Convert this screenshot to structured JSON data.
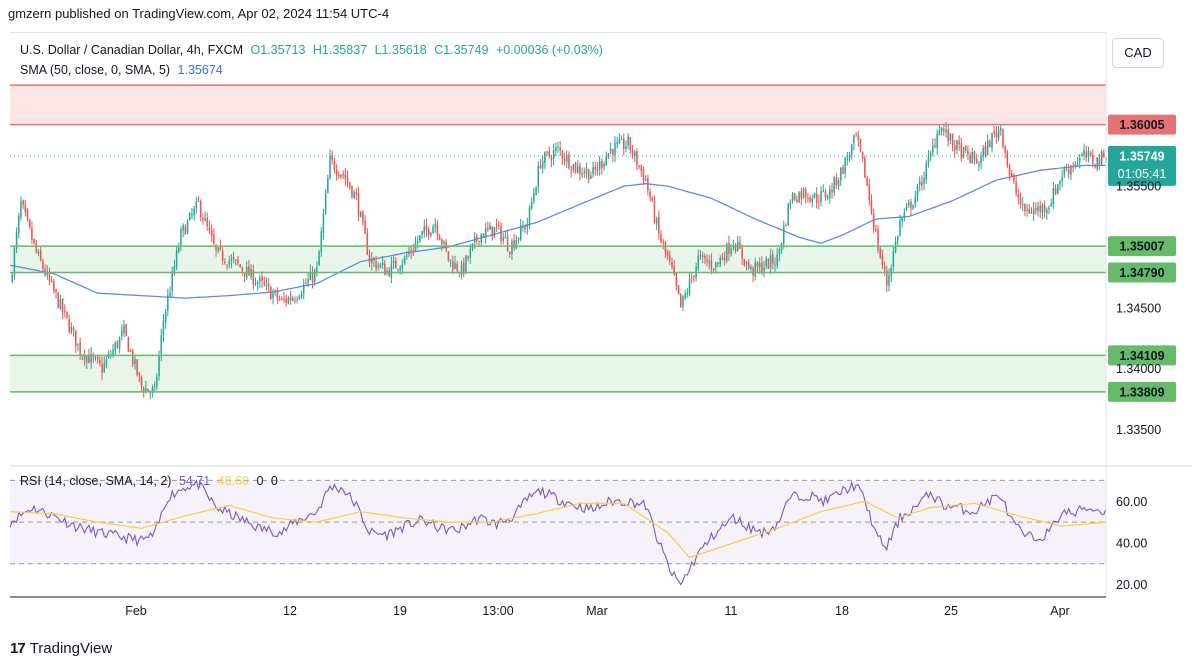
{
  "header": {
    "publisher_line": "gmzern published on TradingView.com, Apr 02, 2024 11:54 UTC-4"
  },
  "legend": {
    "symbol": "U.S. Dollar / Canadian Dollar, 4h, FXCM",
    "open": "O1.35713",
    "high": "H1.35837",
    "low": "L1.35618",
    "close": "C1.35749",
    "change": "+0.00036 (+0.03%)",
    "sma_label": "SMA (50, close, 0, SMA, 5)",
    "sma_value": "1.35674"
  },
  "rsi_legend": {
    "label": "RSI (14, close, SMA, 14, 2)",
    "rsi_value": "54.71",
    "ma_value": "48.60",
    "v3": "0",
    "v4": "0"
  },
  "currency_button": "CAD",
  "footer": {
    "brand": "TradingView"
  },
  "colors": {
    "up": "#26a69a",
    "down": "#ef5350",
    "sma": "#5b8def",
    "rsi": "#7e57c2",
    "rsi_ma": "#f5d142",
    "resistance": "#e57373",
    "support": "#66bb6a"
  },
  "chart_data": [
    {
      "type": "candlestick",
      "title": "U.S. Dollar / Canadian Dollar, 4h, FXCM",
      "ylim": [
        1.332,
        1.3652
      ],
      "y_ticks": [
        "1.35500",
        "1.34500",
        "1.34000",
        "1.33500"
      ],
      "x_ticks": [
        "Feb",
        "12",
        "19",
        "13:00",
        "Mar",
        "11",
        "18",
        "25",
        "Apr"
      ],
      "last_price": "1.35749",
      "countdown": "01:05:41",
      "price_anchors": [
        [
          0,
          1.347
        ],
        [
          5,
          1.3535
        ],
        [
          12,
          1.3495
        ],
        [
          22,
          1.3455
        ],
        [
          32,
          1.3415
        ],
        [
          42,
          1.34
        ],
        [
          52,
          1.343
        ],
        [
          60,
          1.3385
        ],
        [
          66,
          1.338
        ],
        [
          70,
          1.344
        ],
        [
          78,
          1.351
        ],
        [
          86,
          1.3535
        ],
        [
          94,
          1.3495
        ],
        [
          104,
          1.3485
        ],
        [
          114,
          1.347
        ],
        [
          124,
          1.3455
        ],
        [
          130,
          1.346
        ],
        [
          140,
          1.348
        ],
        [
          146,
          1.357
        ],
        [
          152,
          1.356
        ],
        [
          158,
          1.354
        ],
        [
          164,
          1.349
        ],
        [
          172,
          1.348
        ],
        [
          180,
          1.349
        ],
        [
          188,
          1.351
        ],
        [
          194,
          1.352
        ],
        [
          200,
          1.349
        ],
        [
          206,
          1.348
        ],
        [
          214,
          1.351
        ],
        [
          222,
          1.3515
        ],
        [
          228,
          1.35
        ],
        [
          236,
          1.352
        ],
        [
          242,
          1.357
        ],
        [
          250,
          1.358
        ],
        [
          258,
          1.3565
        ],
        [
          266,
          1.356
        ],
        [
          274,
          1.358
        ],
        [
          282,
          1.3585
        ],
        [
          290,
          1.3555
        ],
        [
          296,
          1.351
        ],
        [
          302,
          1.348
        ],
        [
          306,
          1.345
        ],
        [
          314,
          1.349
        ],
        [
          322,
          1.3485
        ],
        [
          330,
          1.3505
        ],
        [
          338,
          1.348
        ],
        [
          344,
          1.3485
        ],
        [
          350,
          1.349
        ],
        [
          356,
          1.354
        ],
        [
          362,
          1.3545
        ],
        [
          368,
          1.354
        ],
        [
          374,
          1.3545
        ],
        [
          380,
          1.3565
        ],
        [
          386,
          1.359
        ],
        [
          390,
          1.356
        ],
        [
          396,
          1.35
        ],
        [
          400,
          1.347
        ],
        [
          406,
          1.352
        ],
        [
          414,
          1.3545
        ],
        [
          420,
          1.3575
        ],
        [
          424,
          1.36
        ],
        [
          430,
          1.3585
        ],
        [
          436,
          1.3575
        ],
        [
          442,
          1.357
        ],
        [
          448,
          1.359
        ],
        [
          452,
          1.3598
        ],
        [
          456,
          1.356
        ],
        [
          462,
          1.353
        ],
        [
          468,
          1.353
        ],
        [
          474,
          1.3535
        ],
        [
          480,
          1.356
        ],
        [
          486,
          1.357
        ],
        [
          490,
          1.3575
        ],
        [
          495,
          1.357
        ],
        [
          500,
          1.3575
        ]
      ],
      "sma_anchors": [
        [
          0,
          1.3485
        ],
        [
          20,
          1.3478
        ],
        [
          40,
          1.3462
        ],
        [
          60,
          1.346
        ],
        [
          80,
          1.3458
        ],
        [
          100,
          1.346
        ],
        [
          120,
          1.3463
        ],
        [
          140,
          1.347
        ],
        [
          160,
          1.3488
        ],
        [
          180,
          1.3495
        ],
        [
          200,
          1.35
        ],
        [
          220,
          1.351
        ],
        [
          240,
          1.352
        ],
        [
          260,
          1.3535
        ],
        [
          280,
          1.355
        ],
        [
          290,
          1.3552
        ],
        [
          300,
          1.355
        ],
        [
          320,
          1.354
        ],
        [
          340,
          1.3523
        ],
        [
          360,
          1.3508
        ],
        [
          370,
          1.3503
        ],
        [
          380,
          1.351
        ],
        [
          395,
          1.3523
        ],
        [
          410,
          1.3525
        ],
        [
          430,
          1.3538
        ],
        [
          450,
          1.3555
        ],
        [
          470,
          1.3563
        ],
        [
          490,
          1.3567
        ],
        [
          500,
          1.3567
        ]
      ],
      "levels": [
        {
          "value": "1.36005",
          "y": 1.36005,
          "kind": "resistance"
        },
        {
          "value": "1.35007",
          "y": 1.35007,
          "kind": "support"
        },
        {
          "value": "1.34790",
          "y": 1.3479,
          "kind": "support"
        },
        {
          "value": "1.34109",
          "y": 1.34109,
          "kind": "support"
        },
        {
          "value": "1.33809",
          "y": 1.33809,
          "kind": "support"
        }
      ],
      "zones": [
        {
          "from": 1.36005,
          "to": 1.3633,
          "kind": "resistance"
        },
        {
          "from": 1.3479,
          "to": 1.35007,
          "kind": "support"
        },
        {
          "from": 1.33809,
          "to": 1.34109,
          "kind": "support"
        }
      ]
    },
    {
      "type": "line",
      "title": "RSI (14, close, SMA, 14, 2)",
      "ylim": [
        15,
        75
      ],
      "y_ticks": [
        "60.00",
        "40.00",
        "20.00"
      ],
      "bands": [
        30,
        70
      ],
      "rsi_anchors": [
        [
          0,
          50
        ],
        [
          10,
          57
        ],
        [
          20,
          53
        ],
        [
          30,
          48
        ],
        [
          40,
          45
        ],
        [
          50,
          43
        ],
        [
          60,
          41
        ],
        [
          66,
          44
        ],
        [
          72,
          62
        ],
        [
          80,
          67
        ],
        [
          86,
          68
        ],
        [
          94,
          57
        ],
        [
          104,
          52
        ],
        [
          114,
          47
        ],
        [
          124,
          45
        ],
        [
          130,
          50
        ],
        [
          140,
          55
        ],
        [
          146,
          67
        ],
        [
          152,
          66
        ],
        [
          158,
          58
        ],
        [
          164,
          45
        ],
        [
          172,
          44
        ],
        [
          180,
          48
        ],
        [
          188,
          51
        ],
        [
          196,
          47
        ],
        [
          204,
          46
        ],
        [
          214,
          52
        ],
        [
          222,
          49
        ],
        [
          230,
          53
        ],
        [
          236,
          61
        ],
        [
          242,
          65
        ],
        [
          250,
          61
        ],
        [
          258,
          58
        ],
        [
          266,
          56
        ],
        [
          274,
          60
        ],
        [
          282,
          60
        ],
        [
          290,
          58
        ],
        [
          296,
          40
        ],
        [
          302,
          25
        ],
        [
          306,
          20
        ],
        [
          314,
          35
        ],
        [
          322,
          45
        ],
        [
          330,
          52
        ],
        [
          338,
          47
        ],
        [
          344,
          45
        ],
        [
          350,
          49
        ],
        [
          356,
          62
        ],
        [
          364,
          63
        ],
        [
          372,
          60
        ],
        [
          380,
          65
        ],
        [
          386,
          68
        ],
        [
          390,
          60
        ],
        [
          396,
          42
        ],
        [
          400,
          38
        ],
        [
          406,
          52
        ],
        [
          414,
          58
        ],
        [
          420,
          64
        ],
        [
          426,
          58
        ],
        [
          432,
          57
        ],
        [
          440,
          55
        ],
        [
          446,
          60
        ],
        [
          452,
          63
        ],
        [
          456,
          52
        ],
        [
          462,
          44
        ],
        [
          468,
          42
        ],
        [
          474,
          45
        ],
        [
          480,
          55
        ],
        [
          486,
          54
        ],
        [
          490,
          57
        ],
        [
          500,
          55
        ]
      ],
      "rsi_ma_anchors": [
        [
          0,
          55
        ],
        [
          20,
          54
        ],
        [
          40,
          50
        ],
        [
          60,
          47
        ],
        [
          80,
          53
        ],
        [
          100,
          58
        ],
        [
          120,
          52
        ],
        [
          140,
          50
        ],
        [
          160,
          55
        ],
        [
          180,
          52
        ],
        [
          200,
          50
        ],
        [
          220,
          50
        ],
        [
          240,
          54
        ],
        [
          260,
          59
        ],
        [
          280,
          59
        ],
        [
          300,
          45
        ],
        [
          310,
          33
        ],
        [
          330,
          40
        ],
        [
          350,
          47
        ],
        [
          370,
          55
        ],
        [
          390,
          60
        ],
        [
          405,
          52
        ],
        [
          420,
          57
        ],
        [
          440,
          59
        ],
        [
          460,
          53
        ],
        [
          480,
          48
        ],
        [
          500,
          50
        ]
      ]
    }
  ]
}
